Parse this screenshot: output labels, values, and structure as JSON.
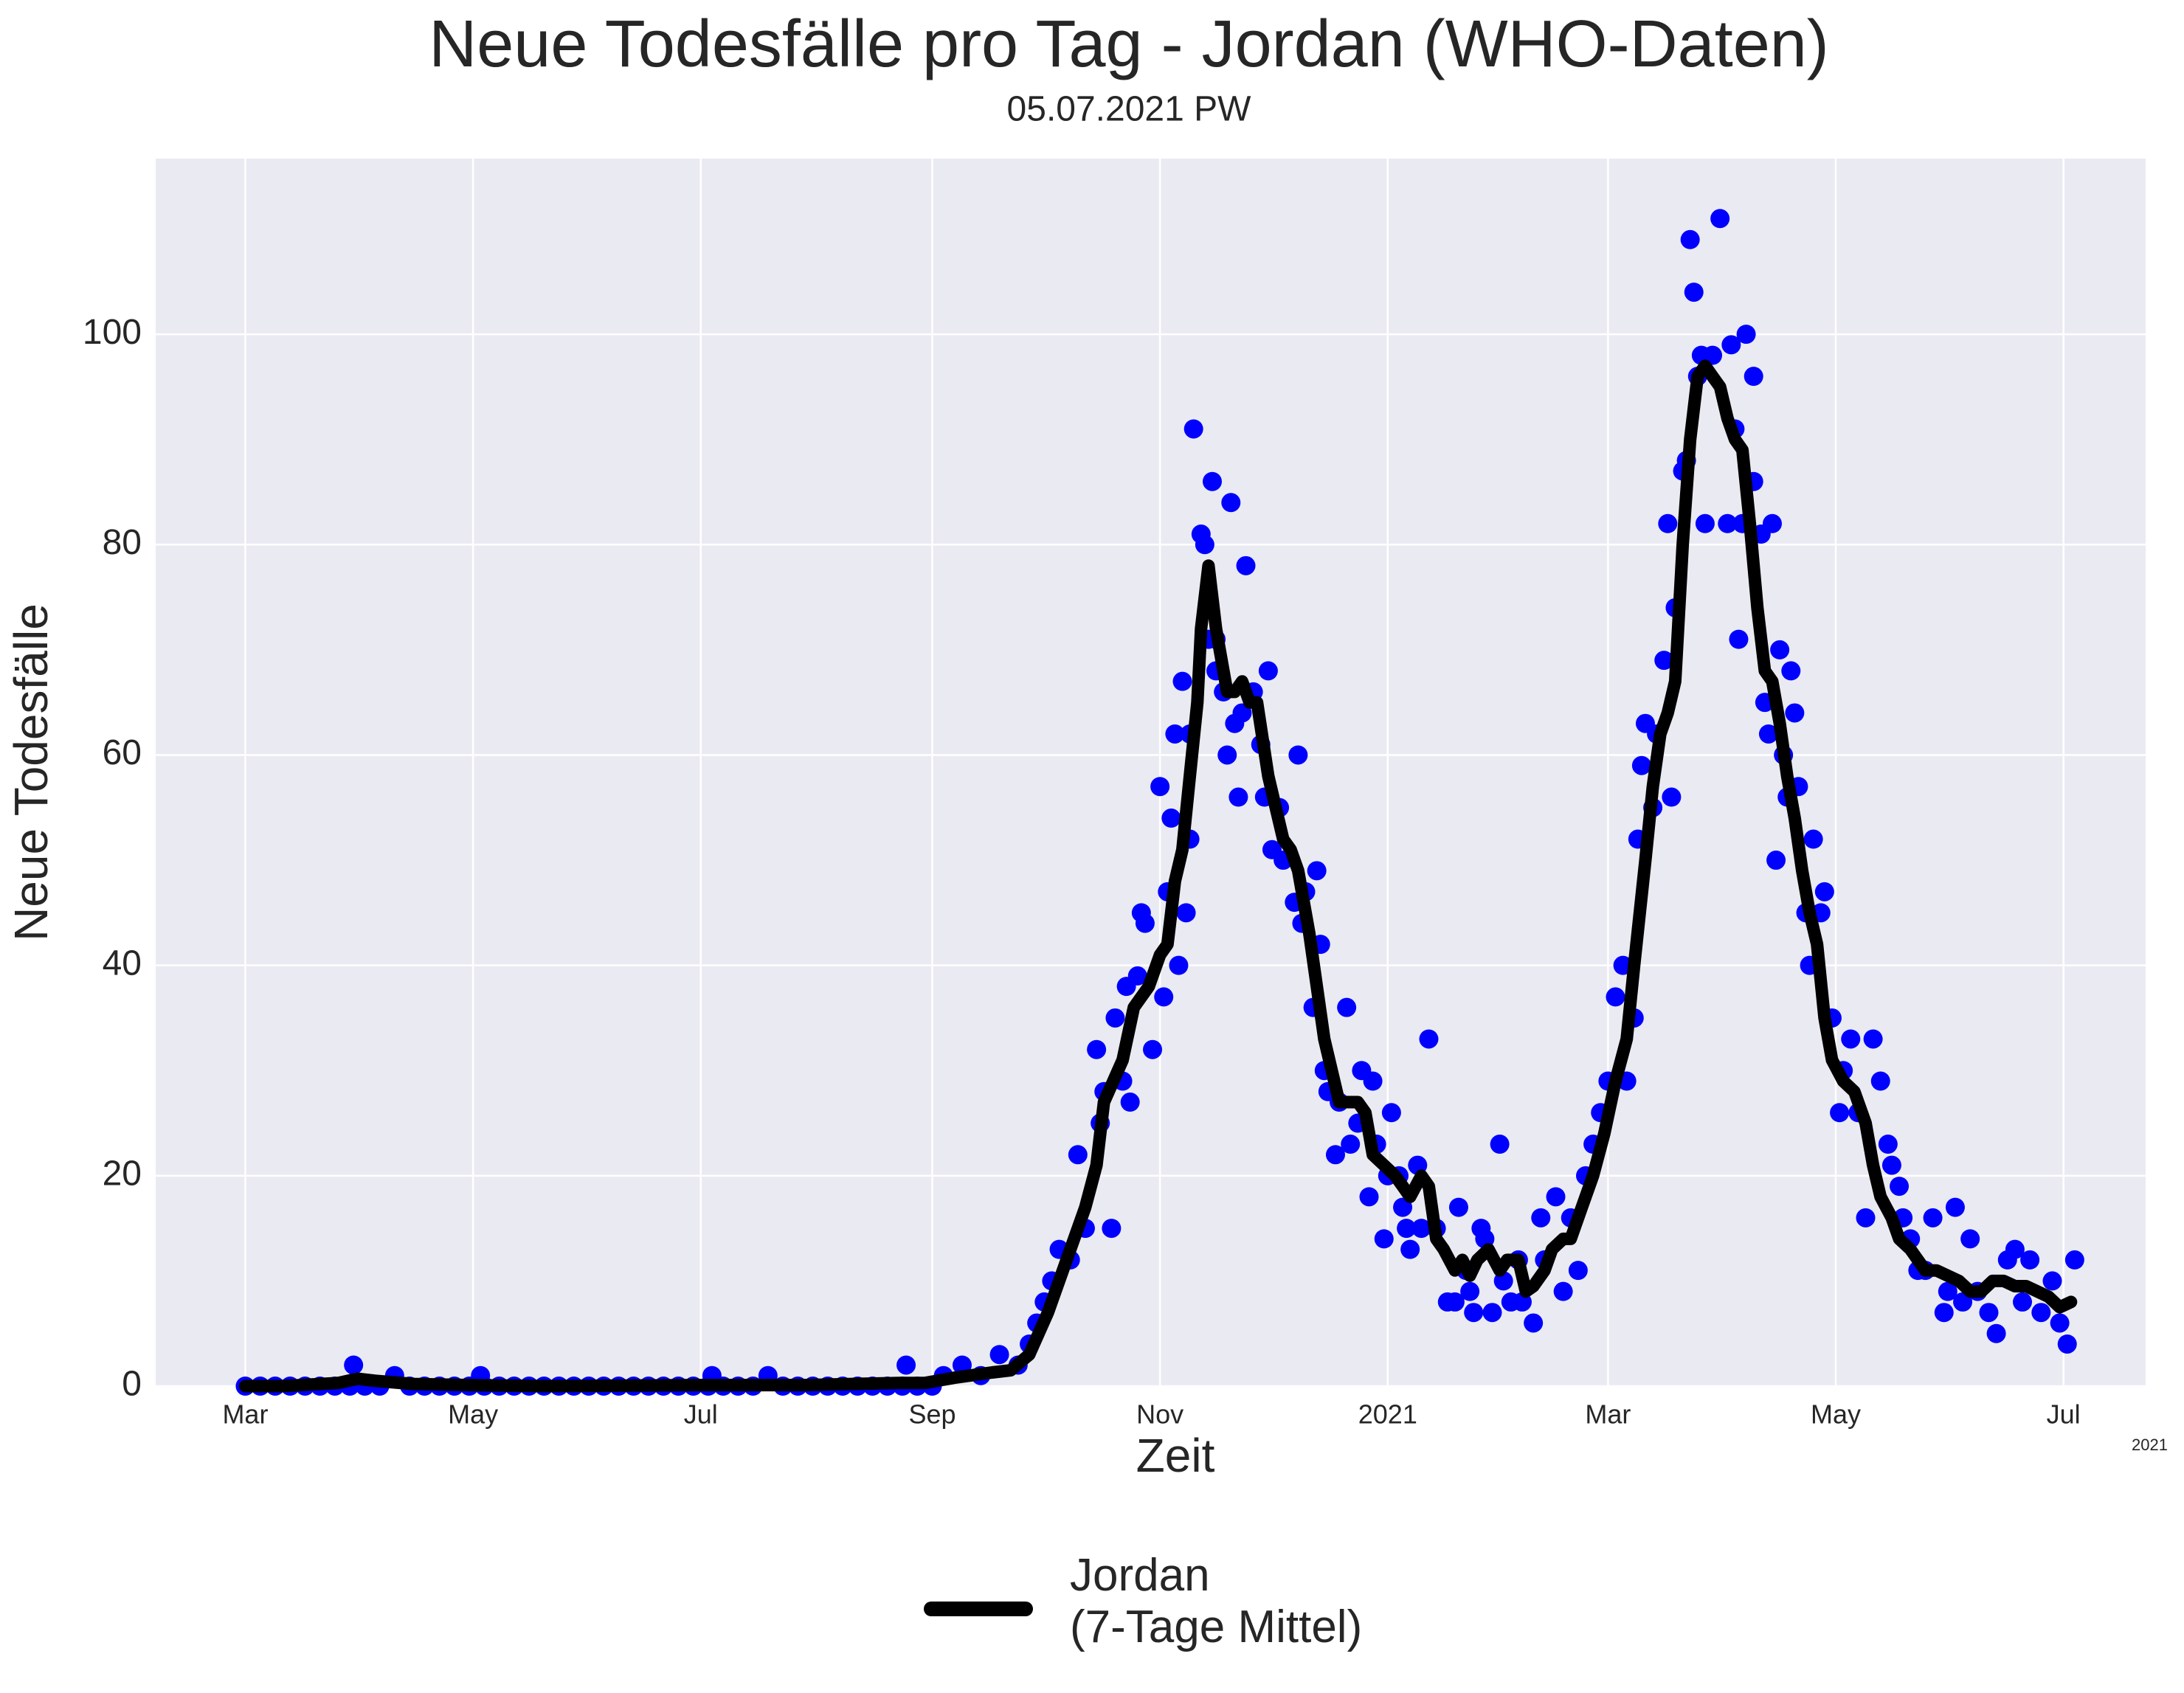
{
  "chart_data": {
    "type": "line",
    "title": "Neue Todesfälle pro Tag - Jordan (WHO-Daten)",
    "subtitle": "05.07.2021 PW",
    "x_label": "Zeit",
    "y_label": "Neue Todesfälle",
    "x_offset_label": "2021",
    "xlim": [
      -24,
      509
    ],
    "xticks": [
      {
        "value": 0,
        "label": "Mar"
      },
      {
        "value": 61,
        "label": "May"
      },
      {
        "value": 122,
        "label": "Jul"
      },
      {
        "value": 184,
        "label": "Sep"
      },
      {
        "value": 245,
        "label": "Nov"
      },
      {
        "value": 306,
        "label": "2021"
      },
      {
        "value": 365,
        "label": "Mar"
      },
      {
        "value": 426,
        "label": "May"
      },
      {
        "value": 487,
        "label": "Jul"
      }
    ],
    "ylim": [
      0,
      116.7
    ],
    "yticks": [
      0,
      20,
      40,
      60,
      80,
      100
    ],
    "grid": true,
    "background": "#eaeaf2",
    "legend": "bottom",
    "series": [
      {
        "name": "Jordan\n(7-Tage Mittel)",
        "type": "line",
        "color": "#000000",
        "x": [
          0,
          10,
          25,
          30,
          35,
          45,
          60,
          80,
          120,
          150,
          175,
          182,
          190,
          200,
          205,
          210,
          215,
          220,
          225,
          228,
          230,
          235,
          238,
          242,
          245,
          247,
          249,
          251,
          253,
          255,
          256,
          258,
          260,
          261,
          263,
          265,
          267,
          269,
          271,
          274,
          276,
          278,
          280,
          282,
          285,
          287,
          289,
          291,
          293,
          296,
          298,
          300,
          302,
          305,
          308,
          310,
          312,
          315,
          317,
          319,
          321,
          324,
          326,
          328,
          330,
          333,
          336,
          338,
          341,
          343,
          345,
          348,
          350,
          353,
          355,
          358,
          361,
          364,
          367,
          370,
          372,
          375,
          377,
          379,
          381,
          383,
          385,
          387,
          389,
          391,
          393,
          395,
          397,
          399,
          401,
          403,
          405,
          407,
          409,
          411,
          413,
          415,
          417,
          419,
          421,
          423,
          425,
          428,
          431,
          434,
          436,
          438,
          441,
          443,
          446,
          448,
          450,
          453,
          456,
          459,
          462,
          465,
          468,
          471,
          474,
          477,
          480,
          483,
          486,
          489
        ],
        "values": [
          0,
          0,
          0.3,
          0.7,
          0.5,
          0.2,
          0.1,
          0,
          0.1,
          0.1,
          0.3,
          0.3,
          0.8,
          1.3,
          1.5,
          3,
          7,
          12,
          17,
          21,
          27,
          31,
          36,
          38,
          41,
          42,
          48,
          51,
          58,
          65,
          72,
          78,
          72,
          70,
          66,
          66,
          67,
          65,
          65,
          58,
          55,
          52,
          51,
          49,
          43,
          38,
          33,
          30,
          27,
          27,
          27,
          26,
          22,
          21,
          20,
          19,
          18,
          20,
          19,
          14,
          13,
          11,
          12,
          10.5,
          12,
          13,
          11,
          12,
          12,
          9,
          9.5,
          11,
          13,
          14,
          14,
          17,
          20,
          24,
          29,
          33,
          40,
          50,
          57,
          62,
          64,
          67,
          80,
          90,
          96,
          97,
          96,
          95,
          92,
          90,
          89,
          82,
          74,
          68,
          67,
          63,
          58,
          54,
          49,
          45,
          42,
          35,
          31,
          29,
          28,
          25,
          21,
          18,
          16,
          14,
          13,
          12,
          11,
          11,
          10.5,
          10,
          9,
          9,
          10,
          10,
          9.5,
          9.5,
          9,
          8.5,
          7.5,
          8
        ]
      },
      {
        "type": "scatter",
        "color": "#0000ff",
        "x": [
          0,
          4,
          8,
          12,
          16,
          20,
          24,
          28,
          29,
          32,
          36,
          40,
          44,
          48,
          52,
          56,
          60,
          63,
          64,
          68,
          72,
          76,
          80,
          84,
          88,
          92,
          96,
          100,
          104,
          108,
          112,
          116,
          120,
          124,
          125,
          128,
          132,
          136,
          140,
          144,
          148,
          152,
          156,
          160,
          164,
          168,
          172,
          176,
          177,
          180,
          184,
          187,
          192,
          197,
          202,
          207,
          210,
          212,
          214,
          216,
          218,
          221,
          223,
          225,
          228,
          229,
          230,
          232,
          233,
          235,
          236,
          237,
          239,
          240,
          241,
          243,
          245,
          246,
          247,
          248,
          249,
          250,
          251,
          252,
          253,
          253,
          254,
          256,
          257,
          258,
          259,
          260,
          260,
          262,
          263,
          264,
          265,
          266,
          267,
          268,
          270,
          272,
          273,
          274,
          275,
          277,
          278,
          281,
          282,
          283,
          284,
          286,
          287,
          288,
          289,
          290,
          292,
          293,
          295,
          296,
          298,
          299,
          301,
          302,
          303,
          305,
          306,
          307,
          309,
          310,
          311,
          312,
          314,
          315,
          317,
          319,
          322,
          324,
          325,
          327,
          328,
          329,
          331,
          332,
          334,
          336,
          337,
          339,
          341,
          342,
          345,
          347,
          348,
          351,
          353,
          355,
          357,
          359,
          361,
          363,
          365,
          367,
          369,
          370,
          372,
          373,
          374,
          375,
          377,
          378,
          380,
          381,
          382,
          383,
          385,
          386,
          387,
          388,
          389,
          390,
          391,
          393,
          395,
          397,
          398,
          399,
          400,
          401,
          402,
          404,
          404,
          406,
          407,
          408,
          409,
          410,
          411,
          412,
          413,
          414,
          415,
          416,
          418,
          419,
          420,
          422,
          423,
          425,
          427,
          428,
          430,
          432,
          434,
          436,
          438,
          440,
          441,
          443,
          444,
          446,
          448,
          450,
          452,
          455,
          456,
          458,
          460,
          462,
          464,
          467,
          469,
          472,
          474,
          476,
          478,
          481,
          484,
          486,
          488,
          490
        ],
        "values": [
          0,
          0,
          0,
          0,
          0,
          0,
          0,
          0,
          2,
          0,
          0,
          1,
          0,
          0,
          0,
          0,
          0,
          1,
          0,
          0,
          0,
          0,
          0,
          0,
          0,
          0,
          0,
          0,
          0,
          0,
          0,
          0,
          0,
          0,
          1,
          0,
          0,
          0,
          1,
          0,
          0,
          0,
          0,
          0,
          0,
          0,
          0,
          0,
          2,
          0,
          0,
          1,
          2,
          1,
          3,
          2,
          4,
          6,
          8,
          10,
          13,
          12,
          22,
          15,
          32,
          25,
          28,
          15,
          35,
          29,
          38,
          27,
          39,
          45,
          44,
          32,
          57,
          37,
          47,
          54,
          62,
          40,
          67,
          45,
          52,
          62,
          91,
          81,
          80,
          71,
          86,
          68,
          71,
          66,
          60,
          84,
          63,
          56,
          64,
          78,
          66,
          61,
          56,
          68,
          51,
          55,
          50,
          46,
          60,
          44,
          47,
          36,
          49,
          42,
          30,
          28,
          22,
          27,
          36,
          23,
          25,
          30,
          18,
          29,
          23,
          14,
          20,
          26,
          20,
          17,
          15,
          13,
          21,
          15,
          33,
          15,
          8,
          8,
          17,
          11,
          9,
          7,
          15,
          14,
          7,
          23,
          10,
          8,
          12,
          8,
          6,
          16,
          12,
          18,
          9,
          16,
          11,
          20,
          23,
          26,
          29,
          37,
          40,
          29,
          35,
          52,
          59,
          63,
          55,
          62,
          69,
          82,
          56,
          74,
          87,
          88,
          109,
          104,
          96,
          98,
          82,
          98,
          111,
          82,
          99,
          91,
          71,
          82,
          100,
          86,
          96,
          81,
          65,
          62,
          82,
          50,
          70,
          60,
          56,
          68,
          64,
          57,
          45,
          40,
          52,
          45,
          47,
          35,
          26,
          30,
          33,
          26,
          16,
          33,
          29,
          23,
          21,
          19,
          16,
          14,
          11,
          11,
          16,
          7,
          9,
          17,
          8,
          14,
          9,
          7,
          5,
          12,
          13,
          8,
          12,
          7,
          10,
          6,
          4,
          12
        ]
      }
    ]
  }
}
